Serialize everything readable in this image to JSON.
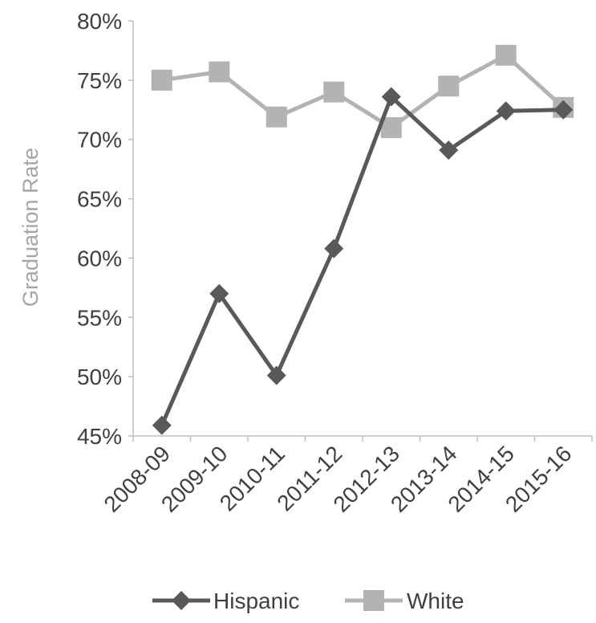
{
  "chart_data": {
    "type": "line",
    "title": "",
    "xlabel": "",
    "ylabel": "Graduation Rate",
    "categories": [
      "2008-09",
      "2009-10",
      "2010-11",
      "2011-12",
      "2012-13",
      "2013-14",
      "2014-15",
      "2015-16"
    ],
    "series": [
      {
        "name": "Hispanic",
        "color": "#595959",
        "marker": "diamond",
        "values": [
          45.9,
          57.0,
          50.1,
          60.8,
          73.6,
          69.1,
          72.4,
          72.5
        ]
      },
      {
        "name": "White",
        "color": "#b3b3b3",
        "marker": "square",
        "values": [
          75.0,
          75.7,
          71.9,
          74.0,
          71.0,
          74.5,
          77.1,
          72.7
        ]
      }
    ],
    "ylim": [
      45,
      80
    ],
    "yticks": [
      45,
      50,
      55,
      60,
      65,
      70,
      75,
      80
    ],
    "ytick_labels": [
      "45%",
      "50%",
      "55%",
      "60%",
      "65%",
      "70%",
      "75%",
      "80%"
    ],
    "grid": false,
    "legend_position": "bottom"
  }
}
